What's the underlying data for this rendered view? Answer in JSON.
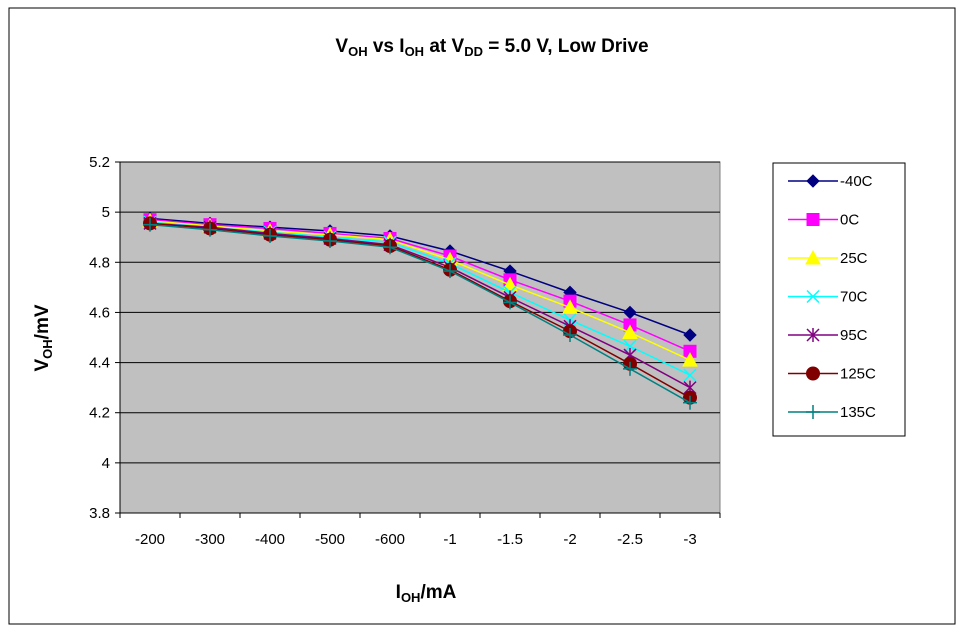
{
  "chart_data": {
    "type": "line",
    "title": {
      "p1": "V",
      "s1": "OH",
      "p2": " vs I",
      "s2": "OH",
      "p3": " at V",
      "s3": "DD",
      "p4": " = 5.0 V, Low Drive"
    },
    "xlabel": {
      "main": "I",
      "sub": "OH",
      "rest": "/mA"
    },
    "ylabel": {
      "main": "V",
      "sub": "OH",
      "rest": "/mV"
    },
    "categories": [
      "-200",
      "-300",
      "-400",
      "-500",
      "-600",
      "-1",
      "-1.5",
      "-2",
      "-2.5",
      "-3"
    ],
    "ylim": [
      3.8,
      5.2
    ],
    "yticks": [
      "3.8",
      "4",
      "4.2",
      "4.4",
      "4.6",
      "4.8",
      "5",
      "5.2"
    ],
    "grid": true,
    "legend_position": "right",
    "plot_background": "#c0c0c0",
    "series": [
      {
        "name": "-40C",
        "color": "#000080",
        "marker": "diamond",
        "values": [
          4.975,
          4.955,
          4.94,
          4.925,
          4.905,
          4.845,
          4.765,
          4.68,
          4.6,
          4.51
        ]
      },
      {
        "name": "0C",
        "color": "#ff00ff",
        "marker": "square",
        "values": [
          4.97,
          4.95,
          4.935,
          4.915,
          4.895,
          4.825,
          4.73,
          4.645,
          4.55,
          4.445
        ]
      },
      {
        "name": "25C",
        "color": "#ffff00",
        "marker": "triangle",
        "values": [
          4.965,
          4.945,
          4.925,
          4.91,
          4.89,
          4.81,
          4.71,
          4.62,
          4.52,
          4.41
        ]
      },
      {
        "name": "70C",
        "color": "#00ffff",
        "marker": "x",
        "values": [
          4.96,
          4.94,
          4.92,
          4.9,
          4.88,
          4.795,
          4.68,
          4.57,
          4.465,
          4.35
        ]
      },
      {
        "name": "95C",
        "color": "#800080",
        "marker": "star",
        "values": [
          4.955,
          4.94,
          4.915,
          4.895,
          4.87,
          4.78,
          4.66,
          4.545,
          4.43,
          4.3
        ]
      },
      {
        "name": "125C",
        "color": "#800000",
        "marker": "circle",
        "values": [
          4.955,
          4.935,
          4.91,
          4.89,
          4.865,
          4.77,
          4.645,
          4.525,
          4.395,
          4.26
        ]
      },
      {
        "name": "135C",
        "color": "#008080",
        "marker": "plus",
        "values": [
          4.95,
          4.93,
          4.905,
          4.885,
          4.86,
          4.765,
          4.64,
          4.51,
          4.375,
          4.24
        ]
      }
    ]
  }
}
